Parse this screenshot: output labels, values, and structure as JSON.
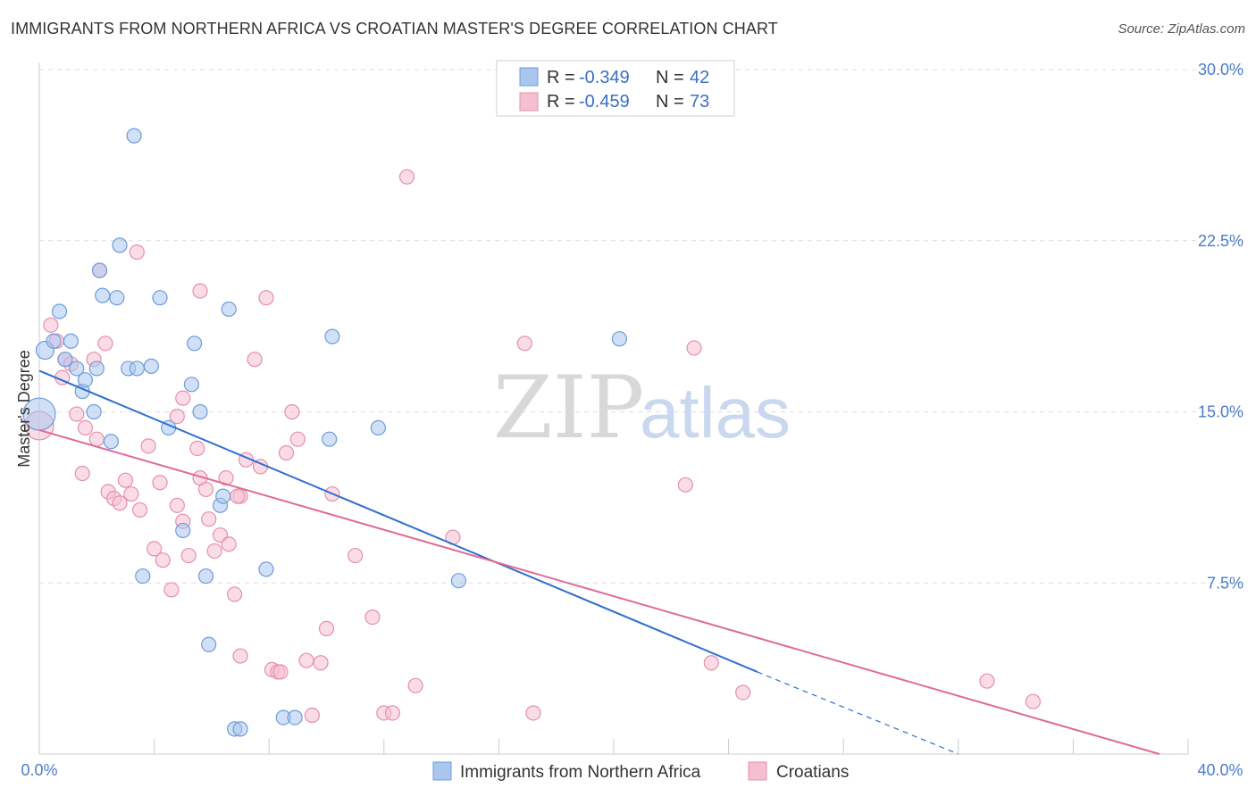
{
  "header": {
    "title": "IMMIGRANTS FROM NORTHERN AFRICA VS CROATIAN MASTER'S DEGREE CORRELATION CHART",
    "source": "Source: ZipAtlas.com"
  },
  "watermark": {
    "zip": "ZIP",
    "atlas": "atlas"
  },
  "colors": {
    "blue_fill": "#a9c6ee",
    "blue_stroke": "#6f9bd9",
    "blue_line": "#2f6fce",
    "pink_fill": "#f6bfd1",
    "pink_stroke": "#e58fac",
    "pink_line": "#e06b95",
    "tick_text": "#4a7cc9",
    "grid": "#dddddd"
  },
  "legend": {
    "r_label": "R =",
    "n_label": "N =",
    "blue": {
      "r": "-0.349",
      "n": "42"
    },
    "pink": {
      "r": "-0.459",
      "n": "73"
    }
  },
  "chart_data": {
    "type": "scatter",
    "title": "IMMIGRANTS FROM NORTHERN AFRICA VS CROATIAN MASTER'S DEGREE CORRELATION CHART",
    "xlabel": "",
    "ylabel": "Master's Degree",
    "xlim": [
      0,
      40
    ],
    "ylim": [
      0,
      30
    ],
    "x_tick_labels": [
      "0.0%",
      "40.0%"
    ],
    "y_ticks": [
      7.5,
      15.0,
      22.5,
      30.0
    ],
    "y_tick_labels": [
      "7.5%",
      "15.0%",
      "22.5%",
      "30.0%"
    ],
    "grid": true,
    "legend_position": "top-center",
    "series": [
      {
        "name": "Immigrants from Northern Africa",
        "color": "#a9c6ee",
        "r": -0.349,
        "n": 42,
        "trend": {
          "x": [
            0,
            25
          ],
          "y": [
            16.8,
            3.6
          ],
          "dashed_to": [
            32,
            0
          ]
        },
        "points": [
          [
            0.0,
            14.9,
            18
          ],
          [
            0.2,
            17.7,
            10
          ],
          [
            0.5,
            18.1,
            8
          ],
          [
            0.7,
            19.4,
            8
          ],
          [
            1.1,
            18.1,
            8
          ],
          [
            1.3,
            16.9,
            8
          ],
          [
            1.5,
            15.9,
            8
          ],
          [
            1.6,
            16.4,
            8
          ],
          [
            1.9,
            15.0,
            8
          ],
          [
            2.1,
            21.2,
            8
          ],
          [
            2.2,
            20.1,
            8
          ],
          [
            2.5,
            13.7,
            8
          ],
          [
            2.7,
            20.0,
            8
          ],
          [
            2.8,
            22.3,
            8
          ],
          [
            3.1,
            16.9,
            8
          ],
          [
            3.3,
            27.1,
            8
          ],
          [
            3.4,
            16.9,
            8
          ],
          [
            3.6,
            7.8,
            8
          ],
          [
            3.9,
            17.0,
            8
          ],
          [
            4.2,
            20.0,
            8
          ],
          [
            4.5,
            14.3,
            8
          ],
          [
            5.0,
            9.8,
            8
          ],
          [
            5.3,
            16.2,
            8
          ],
          [
            5.4,
            18.0,
            8
          ],
          [
            5.6,
            15.0,
            8
          ],
          [
            5.8,
            7.8,
            8
          ],
          [
            5.9,
            4.8,
            8
          ],
          [
            6.3,
            10.9,
            8
          ],
          [
            6.4,
            11.3,
            8
          ],
          [
            6.6,
            19.5,
            8
          ],
          [
            6.8,
            1.1,
            8
          ],
          [
            7.0,
            1.1,
            8
          ],
          [
            7.9,
            8.1,
            8
          ],
          [
            8.5,
            1.6,
            8
          ],
          [
            8.9,
            1.6,
            8
          ],
          [
            10.1,
            13.8,
            8
          ],
          [
            10.2,
            18.3,
            8
          ],
          [
            11.8,
            14.3,
            8
          ],
          [
            14.6,
            7.6,
            8
          ],
          [
            20.2,
            18.2,
            8
          ],
          [
            0.9,
            17.3,
            8
          ],
          [
            2.0,
            16.9,
            8
          ]
        ]
      },
      {
        "name": "Croatians",
        "color": "#f6bfd1",
        "r": -0.459,
        "n": 73,
        "trend": {
          "x": [
            0,
            39.0
          ],
          "y": [
            14.2,
            0.0
          ]
        },
        "points": [
          [
            0.0,
            14.4,
            16
          ],
          [
            0.4,
            18.8,
            8
          ],
          [
            0.6,
            18.1,
            8
          ],
          [
            0.8,
            16.5,
            8
          ],
          [
            0.9,
            17.3,
            8
          ],
          [
            1.1,
            17.1,
            8
          ],
          [
            1.3,
            14.9,
            8
          ],
          [
            1.5,
            12.3,
            8
          ],
          [
            1.6,
            14.3,
            8
          ],
          [
            1.9,
            17.3,
            8
          ],
          [
            2.0,
            13.8,
            8
          ],
          [
            2.1,
            21.2,
            8
          ],
          [
            2.3,
            18.0,
            8
          ],
          [
            2.4,
            11.5,
            8
          ],
          [
            2.6,
            11.2,
            8
          ],
          [
            2.8,
            11.0,
            8
          ],
          [
            3.0,
            12.0,
            8
          ],
          [
            3.2,
            11.4,
            8
          ],
          [
            3.4,
            22.0,
            8
          ],
          [
            3.5,
            10.7,
            8
          ],
          [
            3.8,
            13.5,
            8
          ],
          [
            4.0,
            9.0,
            8
          ],
          [
            4.2,
            11.9,
            8
          ],
          [
            4.3,
            8.5,
            8
          ],
          [
            4.6,
            7.2,
            8
          ],
          [
            4.8,
            10.9,
            8
          ],
          [
            5.0,
            10.2,
            8
          ],
          [
            5.2,
            8.7,
            8
          ],
          [
            5.5,
            13.4,
            8
          ],
          [
            5.6,
            12.1,
            8
          ],
          [
            5.8,
            11.6,
            8
          ],
          [
            5.9,
            10.3,
            8
          ],
          [
            6.1,
            8.9,
            8
          ],
          [
            6.3,
            9.6,
            8
          ],
          [
            6.5,
            12.1,
            8
          ],
          [
            6.6,
            9.2,
            8
          ],
          [
            6.8,
            7.0,
            8
          ],
          [
            7.0,
            11.3,
            8
          ],
          [
            7.2,
            12.9,
            8
          ],
          [
            7.5,
            17.3,
            8
          ],
          [
            7.7,
            12.6,
            8
          ],
          [
            7.9,
            20.0,
            8
          ],
          [
            8.1,
            3.7,
            8
          ],
          [
            8.3,
            3.6,
            8
          ],
          [
            8.6,
            13.2,
            8
          ],
          [
            8.8,
            15.0,
            8
          ],
          [
            9.0,
            13.8,
            8
          ],
          [
            9.3,
            4.1,
            8
          ],
          [
            9.5,
            1.7,
            8
          ],
          [
            9.8,
            4.0,
            8
          ],
          [
            10.0,
            5.5,
            8
          ],
          [
            10.2,
            11.4,
            8
          ],
          [
            11.0,
            8.7,
            8
          ],
          [
            11.6,
            6.0,
            8
          ],
          [
            12.0,
            1.8,
            8
          ],
          [
            12.3,
            1.8,
            8
          ],
          [
            12.8,
            25.3,
            8
          ],
          [
            13.1,
            3.0,
            8
          ],
          [
            14.4,
            9.5,
            8
          ],
          [
            16.9,
            18.0,
            8
          ],
          [
            17.2,
            1.8,
            8
          ],
          [
            22.5,
            11.8,
            8
          ],
          [
            22.8,
            17.8,
            8
          ],
          [
            23.4,
            4.0,
            8
          ],
          [
            24.5,
            2.7,
            8
          ],
          [
            33.0,
            3.2,
            8
          ],
          [
            34.6,
            2.3,
            8
          ],
          [
            5.6,
            20.3,
            8
          ],
          [
            4.8,
            14.8,
            8
          ],
          [
            5.0,
            15.6,
            8
          ],
          [
            7.0,
            4.3,
            8
          ],
          [
            8.4,
            3.6,
            8
          ],
          [
            6.9,
            11.3,
            8
          ]
        ]
      }
    ]
  },
  "bottom_legend": {
    "blue_label": "Immigrants from Northern Africa",
    "pink_label": "Croatians"
  }
}
